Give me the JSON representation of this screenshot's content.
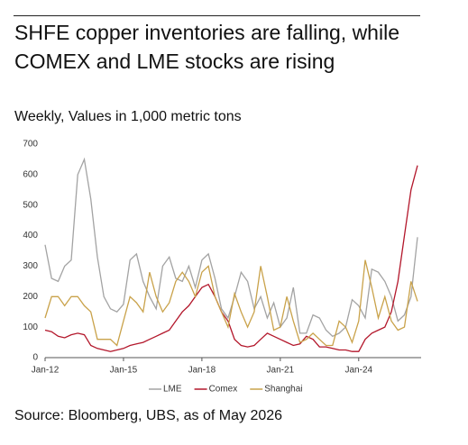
{
  "chart_data": {
    "type": "line",
    "title": "SHFE copper inventories are falling, while COMEX and LME stocks are rising",
    "subtitle": "Weekly, Values in 1,000 metric tons",
    "source": "Source: Bloomberg, UBS, as of May 2026",
    "categories": [
      "Jan-12",
      null,
      null,
      null,
      null,
      null,
      null,
      null,
      null,
      null,
      null,
      null,
      "Jan-15",
      null,
      null,
      null,
      null,
      null,
      null,
      null,
      null,
      null,
      null,
      null,
      "Jan-18",
      null,
      null,
      null,
      null,
      null,
      null,
      null,
      null,
      null,
      null,
      null,
      "Jan-21",
      null,
      null,
      null,
      null,
      null,
      null,
      null,
      null,
      null,
      null,
      null,
      "Jan-24",
      null,
      null,
      null,
      null,
      null,
      null,
      null,
      null,
      null
    ],
    "series": [
      {
        "name": "LME",
        "color": "#a3a3a3",
        "values": [
          370,
          260,
          250,
          300,
          320,
          600,
          650,
          520,
          330,
          200,
          160,
          150,
          175,
          320,
          340,
          250,
          200,
          160,
          300,
          330,
          260,
          250,
          300,
          230,
          320,
          340,
          260,
          160,
          130,
          200,
          280,
          250,
          160,
          200,
          130,
          180,
          100,
          130,
          230,
          80,
          80,
          140,
          130,
          90,
          70,
          80,
          100,
          190,
          170,
          130,
          290,
          280,
          250,
          200,
          120,
          140,
          200,
          395
        ]
      },
      {
        "name": "Comex",
        "color": "#b3172b",
        "values": [
          90,
          85,
          70,
          65,
          75,
          80,
          75,
          40,
          30,
          25,
          20,
          25,
          30,
          40,
          45,
          50,
          60,
          70,
          80,
          90,
          120,
          150,
          170,
          200,
          230,
          240,
          200,
          150,
          120,
          60,
          40,
          35,
          40,
          60,
          80,
          70,
          60,
          50,
          40,
          45,
          70,
          60,
          35,
          35,
          30,
          25,
          25,
          20,
          20,
          60,
          80,
          90,
          100,
          150,
          250,
          400,
          550,
          630
        ]
      },
      {
        "name": "Shanghai",
        "color": "#c9a24a",
        "values": [
          130,
          200,
          200,
          170,
          200,
          200,
          170,
          150,
          60,
          60,
          60,
          40,
          120,
          200,
          180,
          150,
          280,
          200,
          150,
          180,
          250,
          280,
          250,
          200,
          280,
          300,
          200,
          150,
          100,
          210,
          150,
          100,
          150,
          300,
          200,
          90,
          100,
          200,
          120,
          50,
          60,
          80,
          60,
          40,
          40,
          120,
          100,
          50,
          120,
          320,
          230,
          130,
          200,
          120,
          90,
          100,
          250,
          185
        ]
      }
    ],
    "ylim": [
      0,
      700
    ],
    "yticks": [
      0,
      100,
      200,
      300,
      400,
      500,
      600,
      700
    ],
    "grid": false
  }
}
